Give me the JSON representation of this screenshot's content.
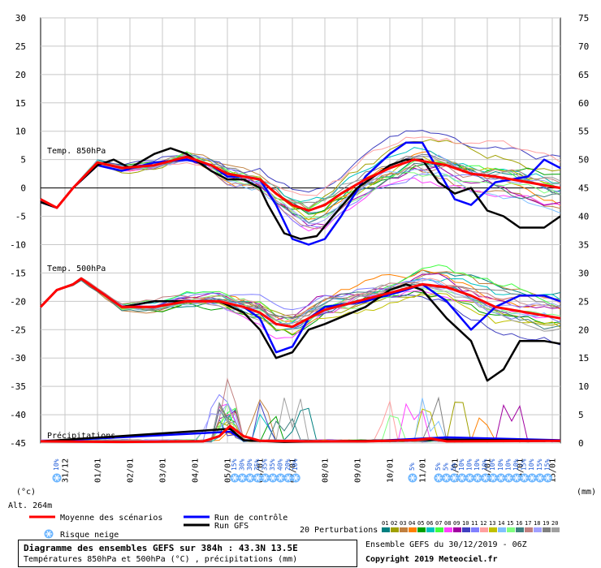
{
  "chart_data": {
    "type": "line",
    "left_axis": {
      "unit": "(°c)",
      "ticks": [
        30,
        25,
        20,
        15,
        10,
        5,
        0,
        -5,
        -10,
        -15,
        -20,
        -25,
        -30,
        -35,
        -40,
        -45
      ],
      "ylim": [
        -45,
        30
      ]
    },
    "right_axis": {
      "unit": "(mm)",
      "ticks": [
        75,
        70,
        65,
        60,
        55,
        50,
        45,
        40,
        35,
        30,
        25,
        20,
        15,
        10,
        5,
        0
      ],
      "ylim": [
        0,
        75
      ]
    },
    "x_ticks": [
      "31/12",
      "01/01",
      "02/01",
      "03/01",
      "04/01",
      "05/01",
      "06/01",
      "07/01",
      "08/01",
      "09/01",
      "10/01",
      "11/01",
      "12/01",
      "13/01",
      "14/01",
      "15/01"
    ],
    "x_range_hours": [
      0,
      384
    ],
    "grid": true,
    "panel_labels": {
      "t850": "Temp. 850hPa",
      "t500": "Temp. 500hPa",
      "precip": "Précipitations"
    },
    "altitude_label": "Alt. 264m",
    "snow_risk": {
      "left": "10%",
      "cluster1": [
        "15%",
        "30%",
        "30%",
        "35%",
        "35%",
        "35%",
        "40%",
        "20%",
        "10%"
      ],
      "mid": "5%",
      "cluster2": [
        "5%",
        "5%",
        "5%",
        "10%",
        "10%",
        "10%",
        "10%",
        "10%",
        "10%",
        "10%",
        "10%",
        "15%",
        "10%",
        "15%",
        "15%"
      ]
    },
    "series": [
      {
        "name": "Moyenne des scénarios",
        "color": "#ff0000",
        "t850": [
          [
            0,
            -2
          ],
          [
            12,
            -3.5
          ],
          [
            24,
            0
          ],
          [
            42,
            4.5
          ],
          [
            60,
            3.5
          ],
          [
            84,
            4
          ],
          [
            108,
            5.5
          ],
          [
            126,
            4
          ],
          [
            138,
            2.5
          ],
          [
            150,
            2
          ],
          [
            162,
            1.5
          ],
          [
            174,
            -1
          ],
          [
            186,
            -3
          ],
          [
            198,
            -4
          ],
          [
            210,
            -3
          ],
          [
            222,
            -1
          ],
          [
            240,
            1.5
          ],
          [
            258,
            3.5
          ],
          [
            276,
            5
          ],
          [
            300,
            4
          ],
          [
            318,
            2.5
          ],
          [
            336,
            2
          ],
          [
            360,
            1
          ],
          [
            384,
            0
          ]
        ],
        "t500": [
          [
            0,
            -21
          ],
          [
            12,
            -18
          ],
          [
            24,
            -17
          ],
          [
            30,
            -16
          ],
          [
            42,
            -18
          ],
          [
            60,
            -21
          ],
          [
            84,
            -21
          ],
          [
            108,
            -20
          ],
          [
            132,
            -20
          ],
          [
            150,
            -21
          ],
          [
            162,
            -22
          ],
          [
            174,
            -24
          ],
          [
            186,
            -24.5
          ],
          [
            198,
            -23
          ],
          [
            210,
            -21.5
          ],
          [
            234,
            -20
          ],
          [
            258,
            -18.5
          ],
          [
            282,
            -17
          ],
          [
            300,
            -17.5
          ],
          [
            318,
            -19
          ],
          [
            336,
            -21
          ],
          [
            360,
            -22
          ],
          [
            384,
            -23
          ]
        ],
        "precip": [
          [
            0,
            0.3
          ],
          [
            60,
            0.2
          ],
          [
            120,
            0.3
          ],
          [
            132,
            1.2
          ],
          [
            140,
            3
          ],
          [
            150,
            1.2
          ],
          [
            162,
            0.4
          ],
          [
            198,
            0.3
          ],
          [
            240,
            0.3
          ],
          [
            276,
            0.5
          ],
          [
            288,
            0.8
          ],
          [
            300,
            0.3
          ],
          [
            384,
            0.4
          ]
        ]
      },
      {
        "name": "Run de contrôle",
        "color": "#0000ff",
        "t850": [
          [
            0,
            -2.5
          ],
          [
            12,
            -3.5
          ],
          [
            24,
            0
          ],
          [
            42,
            4
          ],
          [
            60,
            3
          ],
          [
            84,
            4.5
          ],
          [
            108,
            5
          ],
          [
            126,
            4
          ],
          [
            138,
            2
          ],
          [
            150,
            2
          ],
          [
            162,
            1.5
          ],
          [
            174,
            -3
          ],
          [
            186,
            -9
          ],
          [
            198,
            -10
          ],
          [
            210,
            -9
          ],
          [
            222,
            -5
          ],
          [
            240,
            2
          ],
          [
            258,
            6
          ],
          [
            270,
            8
          ],
          [
            282,
            8
          ],
          [
            294,
            3
          ],
          [
            306,
            -2
          ],
          [
            318,
            -3
          ],
          [
            336,
            1
          ],
          [
            360,
            2
          ],
          [
            372,
            5
          ],
          [
            384,
            3.5
          ]
        ],
        "t500": [
          [
            0,
            -21
          ],
          [
            12,
            -18
          ],
          [
            24,
            -17
          ],
          [
            30,
            -16
          ],
          [
            42,
            -18
          ],
          [
            60,
            -21
          ],
          [
            84,
            -20
          ],
          [
            108,
            -20
          ],
          [
            132,
            -20
          ],
          [
            150,
            -21
          ],
          [
            162,
            -23
          ],
          [
            174,
            -29
          ],
          [
            186,
            -28
          ],
          [
            198,
            -23
          ],
          [
            210,
            -21
          ],
          [
            240,
            -20
          ],
          [
            270,
            -18
          ],
          [
            282,
            -17
          ],
          [
            300,
            -20
          ],
          [
            318,
            -25
          ],
          [
            336,
            -21
          ],
          [
            354,
            -19
          ],
          [
            372,
            -19
          ],
          [
            384,
            -20
          ]
        ],
        "precip": [
          [
            0,
            0.3
          ],
          [
            140,
            2
          ],
          [
            150,
            0.5
          ],
          [
            180,
            0.3
          ],
          [
            240,
            0.3
          ],
          [
            300,
            1
          ],
          [
            384,
            0.5
          ]
        ]
      },
      {
        "name": "Run GFS",
        "color": "#000000",
        "t850": [
          [
            0,
            -2.5
          ],
          [
            12,
            -3.5
          ],
          [
            24,
            0
          ],
          [
            42,
            4
          ],
          [
            54,
            5
          ],
          [
            66,
            3.5
          ],
          [
            84,
            6
          ],
          [
            96,
            7
          ],
          [
            108,
            6
          ],
          [
            126,
            3
          ],
          [
            138,
            1.5
          ],
          [
            150,
            1.5
          ],
          [
            162,
            0
          ],
          [
            168,
            -3
          ],
          [
            180,
            -8
          ],
          [
            192,
            -9
          ],
          [
            204,
            -8.5
          ],
          [
            216,
            -5
          ],
          [
            234,
            0
          ],
          [
            246,
            2
          ],
          [
            258,
            4
          ],
          [
            270,
            5
          ],
          [
            282,
            5
          ],
          [
            294,
            1
          ],
          [
            306,
            -1
          ],
          [
            318,
            0
          ],
          [
            330,
            -4
          ],
          [
            342,
            -5
          ],
          [
            354,
            -7
          ],
          [
            372,
            -7
          ],
          [
            384,
            -5
          ]
        ],
        "t500": [
          [
            0,
            -21
          ],
          [
            12,
            -18
          ],
          [
            24,
            -17
          ],
          [
            30,
            -16
          ],
          [
            42,
            -18
          ],
          [
            60,
            -21
          ],
          [
            84,
            -20
          ],
          [
            108,
            -20
          ],
          [
            132,
            -20
          ],
          [
            150,
            -22
          ],
          [
            162,
            -25
          ],
          [
            174,
            -30
          ],
          [
            186,
            -29
          ],
          [
            198,
            -25
          ],
          [
            210,
            -24
          ],
          [
            240,
            -21
          ],
          [
            258,
            -18
          ],
          [
            270,
            -17
          ],
          [
            282,
            -18
          ],
          [
            300,
            -23
          ],
          [
            318,
            -27
          ],
          [
            330,
            -34
          ],
          [
            342,
            -32
          ],
          [
            354,
            -27
          ],
          [
            372,
            -27
          ],
          [
            384,
            -27.5
          ]
        ],
        "precip": [
          [
            0,
            0.3
          ],
          [
            140,
            2.5
          ],
          [
            150,
            0.5
          ],
          [
            180,
            0.2
          ],
          [
            300,
            0.6
          ],
          [
            384,
            0.4
          ]
        ]
      }
    ]
  },
  "legend": {
    "mean": "Moyenne des scénarios",
    "control": "Run de contrôle",
    "gfs": "Run GFS",
    "snow": "Risque neige",
    "perturbations": "20 Perturbations",
    "pert_numbers": [
      "01",
      "02",
      "03",
      "04",
      "05",
      "06",
      "07",
      "08",
      "09",
      "10",
      "11",
      "12",
      "13",
      "14",
      "15",
      "16",
      "17",
      "18",
      "19",
      "20"
    ],
    "pert_colors": [
      "#008080",
      "#a0a000",
      "#c08040",
      "#ff8000",
      "#00a000",
      "#00c0c0",
      "#40ff40",
      "#ff40ff",
      "#a000a0",
      "#4040c0",
      "#8080ff",
      "#ffa0a0",
      "#c0c000",
      "#80c0ff",
      "#80ff80",
      "#408080",
      "#c08080",
      "#a0a0ff",
      "#808080",
      "#a0a0a0"
    ]
  },
  "footer": {
    "title": "Diagramme des ensembles GEFS sur 384h : 43.3N 13.5E",
    "subtitle": "Températures 850hPa et 500hPa (°C) , précipitations (mm)",
    "run": "Ensemble GEFS du 30/12/2019 - 06Z",
    "copyright": "Copyright 2019 Meteociel.fr"
  }
}
